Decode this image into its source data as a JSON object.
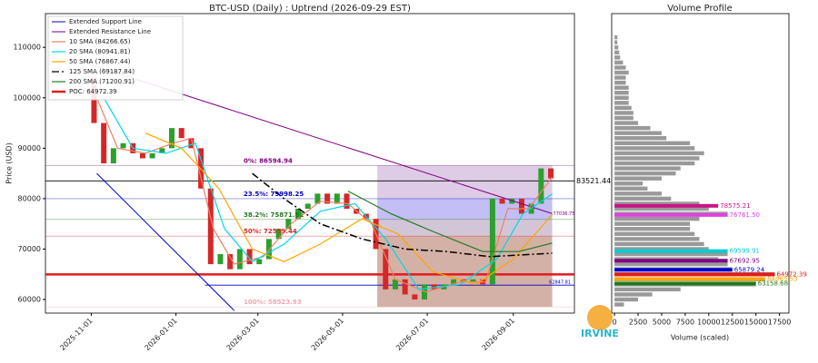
{
  "watermark": "IRVINE",
  "chart_data": [
    {
      "type": "candlestick",
      "title": "BTC-USD (Daily) : Uptrend (2026-09-29 EST)",
      "ylabel": "Price (USD)",
      "xlim": [
        "2025-09-29",
        "2026-10-15"
      ],
      "ylim": [
        57300,
        116700
      ],
      "xticks": [
        "2025-11-01",
        "2026-01-01",
        "2026-03-01",
        "2026-05-01",
        "2026-07-01",
        "2026-09-01"
      ],
      "yticks": [
        60000,
        70000,
        80000,
        90000,
        100000,
        110000
      ],
      "up_color": "#2ca02c",
      "down_color": "#d62728",
      "x": [
        "2025-10-27",
        "2025-11-03",
        "2025-11-10",
        "2025-11-17",
        "2025-11-24",
        "2025-12-01",
        "2025-12-08",
        "2025-12-15",
        "2025-12-22",
        "2025-12-29",
        "2026-01-05",
        "2026-01-12",
        "2026-01-19",
        "2026-01-26",
        "2026-02-02",
        "2026-02-09",
        "2026-02-16",
        "2026-02-23",
        "2026-03-02",
        "2026-03-09",
        "2026-03-16",
        "2026-03-23",
        "2026-03-30",
        "2026-04-06",
        "2026-04-13",
        "2026-04-20",
        "2026-04-27",
        "2026-05-04",
        "2026-05-11",
        "2026-05-18",
        "2026-05-25",
        "2026-06-01",
        "2026-06-08",
        "2026-06-15",
        "2026-06-22",
        "2026-06-29",
        "2026-07-06",
        "2026-07-13",
        "2026-07-20",
        "2026-07-27",
        "2026-08-03",
        "2026-08-10",
        "2026-08-17",
        "2026-08-24",
        "2026-08-31",
        "2026-09-07",
        "2026-09-14",
        "2026-09-21",
        "2026-09-28"
      ],
      "values": [
        104000,
        95000,
        87000,
        90000,
        91000,
        89000,
        88000,
        89000,
        90000,
        94000,
        92000,
        90000,
        82000,
        67000,
        69000,
        66000,
        70000,
        67000,
        68000,
        72000,
        74000,
        76000,
        78000,
        79000,
        81000,
        79000,
        81000,
        78000,
        77000,
        76000,
        70000,
        62000,
        64000,
        61000,
        60000,
        63000,
        62000,
        63000,
        64000,
        63500,
        64000,
        63000,
        80000,
        79000,
        80000,
        77000,
        79000,
        86000,
        84000
      ],
      "lines": [
        {
          "name": "Extended Support Line",
          "color": "#0000cd",
          "x": [
            "2025-11-05",
            "2026-02-12"
          ],
          "values": [
            85000,
            57800
          ]
        },
        {
          "name": "Extended Resistance Line",
          "color": "#800080",
          "x": [
            "2025-10-29",
            "2026-09-29"
          ],
          "values": [
            106800,
            77036.75
          ],
          "end_label": "77036.75"
        }
      ],
      "series": [
        {
          "name": "10 SMA (84266.65)",
          "color": "#f08060",
          "dash": "",
          "x": [
            "2025-11-05",
            "2025-11-20",
            "2025-12-10",
            "2025-12-30",
            "2026-01-12",
            "2026-01-28",
            "2026-02-12",
            "2026-03-05",
            "2026-03-25",
            "2026-04-15",
            "2026-05-05",
            "2026-05-22",
            "2026-06-08",
            "2026-06-30",
            "2026-07-25",
            "2026-08-12",
            "2026-08-28",
            "2026-09-12",
            "2026-09-29"
          ],
          "values": [
            100000,
            90000,
            89000,
            91000,
            92000,
            74000,
            67000,
            68500,
            75000,
            79500,
            79000,
            75000,
            64000,
            61500,
            63500,
            63500,
            78000,
            78000,
            84266.65
          ]
        },
        {
          "name": "20 SMA (80941.81)",
          "color": "#00d8e8",
          "dash": "",
          "x": [
            "2025-11-10",
            "2025-12-01",
            "2025-12-25",
            "2026-01-15",
            "2026-02-05",
            "2026-02-25",
            "2026-03-20",
            "2026-04-15",
            "2026-05-10",
            "2026-06-01",
            "2026-06-25",
            "2026-07-25",
            "2026-08-20",
            "2026-09-08",
            "2026-09-29"
          ],
          "values": [
            100000,
            90000,
            89000,
            91000,
            74000,
            67500,
            71000,
            77500,
            79000,
            72000,
            62000,
            63000,
            68000,
            77000,
            80941.81
          ]
        },
        {
          "name": "50 SMA (76867.44)",
          "color": "#ffa500",
          "dash": "",
          "x": [
            "2025-12-10",
            "2026-01-05",
            "2026-02-01",
            "2026-02-25",
            "2026-03-20",
            "2026-04-15",
            "2026-05-15",
            "2026-06-10",
            "2026-07-05",
            "2026-08-05",
            "2026-09-01",
            "2026-09-29"
          ],
          "values": [
            93000,
            90000,
            82000,
            70000,
            67500,
            71000,
            76000,
            73000,
            65500,
            63000,
            68000,
            76867.44
          ]
        },
        {
          "name": "125 SMA (69187.84)",
          "color": "#000000",
          "dash": "8 3 2 3",
          "x": [
            "2026-02-25",
            "2026-03-20",
            "2026-04-15",
            "2026-05-15",
            "2026-06-15",
            "2026-07-15",
            "2026-08-15",
            "2026-09-29"
          ],
          "values": [
            85000,
            80000,
            75000,
            72000,
            70000,
            69500,
            68500,
            69187.84
          ]
        },
        {
          "name": "200 SMA (71200.91)",
          "color": "#1f7a1f",
          "dash": "",
          "x": [
            "2026-05-05",
            "2026-06-05",
            "2026-07-05",
            "2026-08-10",
            "2026-09-05",
            "2026-09-29"
          ],
          "values": [
            81500,
            77000,
            73500,
            69500,
            69500,
            71200.91
          ]
        }
      ],
      "poc": {
        "name": "POC: 64972.39",
        "value": 64972.39,
        "color": "#e31a1c"
      },
      "hlines": [
        {
          "value": 83521.44,
          "label": "83521.44",
          "color": "#000000"
        },
        {
          "value": 62847.81,
          "label": "62847.81",
          "color": "#0000cd",
          "start": "2026-01-22"
        }
      ],
      "zone_x": [
        "2026-05-26",
        "2026-09-29"
      ],
      "fib_levels": [
        {
          "label": "0%: 86594.94",
          "value": 86594.94,
          "color": "#800080",
          "zone_color": "#b58ec9"
        },
        {
          "label": "23.5%: 79998.25",
          "value": 79998.25,
          "color": "#0000cd",
          "zone_color": "#7b6ee8"
        },
        {
          "label": "38.2%: 75871.81",
          "value": 75871.81,
          "color": "#1f7a1f",
          "zone_color": "#9d7fa8"
        },
        {
          "label": "50%: 72559.44",
          "value": 72559.44,
          "color": "#d62728",
          "zone_color": "#a0523a"
        },
        {
          "label": "100%: 58523.93",
          "value": 58523.93,
          "color": "#f4a6b0"
        }
      ]
    },
    {
      "type": "barh",
      "title": "Volume Profile",
      "xlabel": "Volume (scaled)",
      "xlim": [
        -300,
        18500
      ],
      "xticks": [
        0,
        2500,
        5000,
        7500,
        10000,
        12500,
        15000,
        17500
      ],
      "color": "#999999",
      "y": [
        59000,
        60000,
        61000,
        62000,
        63000,
        64000,
        65000,
        66000,
        67000,
        68000,
        69000,
        70000,
        71000,
        72000,
        73000,
        74000,
        75000,
        76000,
        77000,
        78000,
        79000,
        80000,
        81000,
        82000,
        83000,
        84000,
        85000,
        86000,
        87000,
        88000,
        89000,
        90000,
        91000,
        92000,
        93000,
        94000,
        95000,
        96000,
        97000,
        98000,
        99000,
        100000,
        101000,
        102000,
        103000,
        104000,
        105000,
        106000,
        107000,
        108000,
        109000,
        110000,
        111000,
        112000
      ],
      "values": [
        1000,
        2500,
        4000,
        7000,
        15000,
        16000,
        17000,
        12500,
        12000,
        11000,
        12000,
        10000,
        9500,
        9000,
        8500,
        8000,
        8000,
        9000,
        12000,
        10000,
        9000,
        6000,
        5000,
        3500,
        3000,
        5000,
        6500,
        7000,
        8500,
        9000,
        9500,
        8500,
        8000,
        5500,
        5000,
        3800,
        2500,
        2000,
        2000,
        1800,
        1500,
        1500,
        1500,
        1500,
        1200,
        1200,
        1500,
        1200,
        900,
        600,
        500,
        400,
        300,
        300
      ],
      "highlights": [
        {
          "price": 78575.21,
          "label": "78575.21",
          "volume": 11000,
          "color": "#c71585"
        },
        {
          "price": 76761.5,
          "label": "76761.50",
          "volume": 12000,
          "color": "#e040e0"
        },
        {
          "price": 69599.91,
          "label": "69599.91",
          "volume": 12000,
          "color": "#00ced1"
        },
        {
          "price": 67692.95,
          "label": "67692.95",
          "volume": 12000,
          "color": "#800080"
        },
        {
          "price": 65879.24,
          "label": "65879.24",
          "volume": 12500,
          "color": "#0000cd"
        },
        {
          "price": 64972.39,
          "label": "64972.39",
          "volume": 17000,
          "color": "#e31a1c"
        },
        {
          "price": 64065.53,
          "label": "64065.53",
          "volume": 16000,
          "color": "#ffa500"
        },
        {
          "price": 63158.68,
          "label": "63158.68",
          "volume": 15000,
          "color": "#1f7a1f"
        }
      ]
    }
  ]
}
